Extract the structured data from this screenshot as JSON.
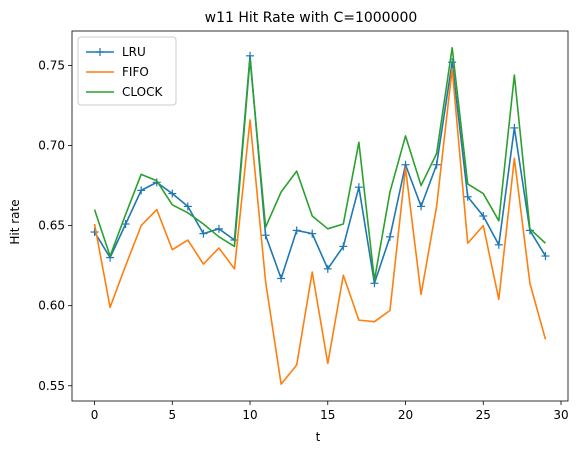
{
  "chart_data": {
    "type": "line",
    "title": "w11 Hit Rate with C=1000000",
    "xlabel": "t",
    "ylabel": "Hit rate",
    "xlim": [
      -1.45,
      30.45
    ],
    "ylim": [
      0.5405,
      0.7715
    ],
    "xticks": [
      0,
      5,
      10,
      15,
      20,
      25,
      30
    ],
    "xtick_labels": [
      "0",
      "5",
      "10",
      "15",
      "20",
      "25",
      "30"
    ],
    "yticks": [
      0.55,
      0.6,
      0.65,
      0.7,
      0.75
    ],
    "ytick_labels": [
      "0.55",
      "0.60",
      "0.65",
      "0.70",
      "0.75"
    ],
    "grid": false,
    "legend_position": "top-left",
    "x": [
      0,
      1,
      2,
      3,
      4,
      5,
      6,
      7,
      8,
      9,
      10,
      11,
      12,
      13,
      14,
      15,
      16,
      17,
      18,
      19,
      20,
      21,
      22,
      23,
      24,
      25,
      26,
      27,
      28,
      29
    ],
    "series": [
      {
        "name": "LRU",
        "color": "#1f77b4",
        "marker": "+",
        "values": [
          0.646,
          0.63,
          0.651,
          0.672,
          0.677,
          0.67,
          0.662,
          0.645,
          0.648,
          0.641,
          0.756,
          0.644,
          0.617,
          0.647,
          0.645,
          0.623,
          0.637,
          0.674,
          0.614,
          0.643,
          0.688,
          0.662,
          0.688,
          0.752,
          0.668,
          0.656,
          0.638,
          0.711,
          0.647,
          0.631
        ]
      },
      {
        "name": "FIFO",
        "color": "#ff7f0e",
        "marker": "",
        "values": [
          0.651,
          0.599,
          0.625,
          0.65,
          0.66,
          0.635,
          0.641,
          0.626,
          0.636,
          0.623,
          0.716,
          0.615,
          0.551,
          0.563,
          0.621,
          0.564,
          0.619,
          0.591,
          0.59,
          0.597,
          0.686,
          0.607,
          0.662,
          0.748,
          0.639,
          0.65,
          0.604,
          0.692,
          0.614,
          0.579
        ]
      },
      {
        "name": "CLOCK",
        "color": "#2ca02c",
        "marker": "",
        "values": [
          0.66,
          0.631,
          0.657,
          0.682,
          0.678,
          0.663,
          0.658,
          0.651,
          0.643,
          0.637,
          0.754,
          0.649,
          0.671,
          0.684,
          0.656,
          0.648,
          0.651,
          0.702,
          0.616,
          0.671,
          0.706,
          0.675,
          0.695,
          0.761,
          0.676,
          0.67,
          0.653,
          0.744,
          0.648,
          0.639
        ]
      }
    ]
  }
}
